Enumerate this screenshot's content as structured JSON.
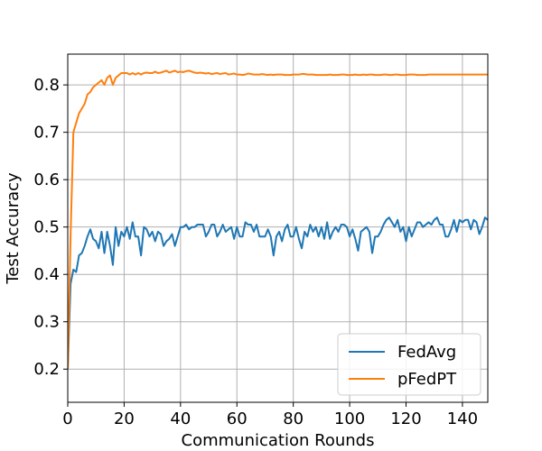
{
  "chart_data": {
    "type": "line",
    "title": "",
    "xlabel": "Communication Rounds",
    "ylabel": "Test Accuracy",
    "xlim": [
      0,
      149
    ],
    "ylim": [
      0.13,
      0.865
    ],
    "xticks": [
      0,
      20,
      40,
      60,
      80,
      100,
      120,
      140
    ],
    "yticks": [
      0.2,
      0.3,
      0.4,
      0.5,
      0.6,
      0.7,
      0.8
    ],
    "xtick_labels": [
      "0",
      "20",
      "40",
      "60",
      "80",
      "100",
      "120",
      "140"
    ],
    "ytick_labels": [
      "0.2",
      "0.3",
      "0.4",
      "0.5",
      "0.6",
      "0.7",
      "0.8"
    ],
    "grid": true,
    "legend_position": "bottom-right",
    "series": [
      {
        "name": "FedAvg",
        "color": "#1f77b4",
        "x": [
          0,
          1,
          2,
          3,
          4,
          5,
          6,
          7,
          8,
          9,
          10,
          11,
          12,
          13,
          14,
          15,
          16,
          17,
          18,
          19,
          20,
          21,
          22,
          23,
          24,
          25,
          26,
          27,
          28,
          29,
          30,
          31,
          32,
          33,
          34,
          35,
          36,
          37,
          38,
          39,
          40,
          41,
          42,
          43,
          44,
          45,
          46,
          47,
          48,
          49,
          50,
          51,
          52,
          53,
          54,
          55,
          56,
          57,
          58,
          59,
          60,
          61,
          62,
          63,
          64,
          65,
          66,
          67,
          68,
          69,
          70,
          71,
          72,
          73,
          74,
          75,
          76,
          77,
          78,
          79,
          80,
          81,
          82,
          83,
          84,
          85,
          86,
          87,
          88,
          89,
          90,
          91,
          92,
          93,
          94,
          95,
          96,
          97,
          98,
          99,
          100,
          101,
          102,
          103,
          104,
          105,
          106,
          107,
          108,
          109,
          110,
          111,
          112,
          113,
          114,
          115,
          116,
          117,
          118,
          119,
          120,
          121,
          122,
          123,
          124,
          125,
          126,
          127,
          128,
          129,
          130,
          131,
          132,
          133,
          134,
          135,
          136,
          137,
          138,
          139,
          140,
          141,
          142,
          143,
          144,
          145,
          146,
          147,
          148,
          149
        ],
        "values": [
          0.2,
          0.38,
          0.41,
          0.405,
          0.44,
          0.445,
          0.46,
          0.48,
          0.495,
          0.475,
          0.47,
          0.455,
          0.49,
          0.445,
          0.49,
          0.46,
          0.42,
          0.5,
          0.46,
          0.49,
          0.48,
          0.5,
          0.475,
          0.51,
          0.48,
          0.48,
          0.44,
          0.5,
          0.495,
          0.48,
          0.49,
          0.47,
          0.49,
          0.485,
          0.46,
          0.47,
          0.475,
          0.485,
          0.46,
          0.48,
          0.5,
          0.5,
          0.505,
          0.495,
          0.5,
          0.5,
          0.505,
          0.505,
          0.505,
          0.48,
          0.49,
          0.505,
          0.505,
          0.48,
          0.49,
          0.505,
          0.49,
          0.495,
          0.5,
          0.475,
          0.5,
          0.48,
          0.48,
          0.51,
          0.505,
          0.505,
          0.49,
          0.505,
          0.48,
          0.48,
          0.48,
          0.495,
          0.48,
          0.44,
          0.48,
          0.49,
          0.47,
          0.495,
          0.505,
          0.48,
          0.48,
          0.5,
          0.475,
          0.455,
          0.49,
          0.48,
          0.505,
          0.49,
          0.5,
          0.48,
          0.5,
          0.475,
          0.51,
          0.475,
          0.49,
          0.5,
          0.49,
          0.505,
          0.505,
          0.5,
          0.48,
          0.495,
          0.475,
          0.45,
          0.49,
          0.495,
          0.5,
          0.49,
          0.445,
          0.48,
          0.48,
          0.49,
          0.505,
          0.515,
          0.52,
          0.51,
          0.5,
          0.515,
          0.49,
          0.5,
          0.47,
          0.5,
          0.48,
          0.495,
          0.51,
          0.51,
          0.5,
          0.505,
          0.51,
          0.505,
          0.515,
          0.52,
          0.505,
          0.505,
          0.48,
          0.48,
          0.495,
          0.515,
          0.49,
          0.515,
          0.51,
          0.515,
          0.515,
          0.495,
          0.515,
          0.51,
          0.485,
          0.5,
          0.52,
          0.515
        ],
        "values_note_placeholder": null
      },
      {
        "name": "pFedPT",
        "color": "#ff7f0e",
        "x": [
          0,
          1,
          2,
          3,
          4,
          5,
          6,
          7,
          8,
          9,
          10,
          11,
          12,
          13,
          14,
          15,
          16,
          17,
          18,
          19,
          20,
          21,
          22,
          23,
          24,
          25,
          26,
          27,
          28,
          29,
          30,
          31,
          32,
          33,
          34,
          35,
          36,
          37,
          38,
          39,
          40,
          41,
          42,
          43,
          44,
          45,
          46,
          47,
          48,
          49,
          50,
          51,
          52,
          53,
          54,
          55,
          56,
          57,
          58,
          59,
          60,
          61,
          62,
          63,
          64,
          65,
          66,
          67,
          68,
          69,
          70,
          71,
          72,
          73,
          74,
          75,
          76,
          77,
          78,
          79,
          80,
          81,
          82,
          83,
          84,
          85,
          86,
          87,
          88,
          89,
          90,
          91,
          92,
          93,
          94,
          95,
          96,
          97,
          98,
          99,
          100,
          101,
          102,
          103,
          104,
          105,
          106,
          107,
          108,
          109,
          110,
          111,
          112,
          113,
          114,
          115,
          116,
          117,
          118,
          119,
          120,
          121,
          122,
          123,
          124,
          125,
          126,
          127,
          128,
          129,
          130,
          131,
          132,
          133,
          134,
          135,
          136,
          137,
          138,
          139,
          140,
          141,
          142,
          143,
          144,
          145,
          146,
          147,
          148,
          149
        ],
        "values": [
          0.2,
          0.48,
          0.7,
          0.72,
          0.74,
          0.75,
          0.76,
          0.78,
          0.785,
          0.795,
          0.8,
          0.805,
          0.81,
          0.8,
          0.815,
          0.82,
          0.8,
          0.815,
          0.82,
          0.825,
          0.825,
          0.825,
          0.822,
          0.825,
          0.822,
          0.825,
          0.822,
          0.825,
          0.826,
          0.825,
          0.825,
          0.828,
          0.825,
          0.826,
          0.828,
          0.83,
          0.826,
          0.828,
          0.83,
          0.827,
          0.828,
          0.827,
          0.829,
          0.83,
          0.828,
          0.826,
          0.825,
          0.826,
          0.825,
          0.824,
          0.825,
          0.823,
          0.824,
          0.825,
          0.823,
          0.824,
          0.825,
          0.822,
          0.823,
          0.824,
          0.822,
          0.822,
          0.821,
          0.822,
          0.824,
          0.823,
          0.822,
          0.822,
          0.822,
          0.823,
          0.822,
          0.821,
          0.822,
          0.821,
          0.822,
          0.822,
          0.822,
          0.821,
          0.821,
          0.821,
          0.822,
          0.822,
          0.822,
          0.823,
          0.823,
          0.822,
          0.822,
          0.822,
          0.821,
          0.821,
          0.821,
          0.821,
          0.821,
          0.822,
          0.821,
          0.821,
          0.821,
          0.822,
          0.822,
          0.821,
          0.821,
          0.821,
          0.822,
          0.821,
          0.821,
          0.822,
          0.821,
          0.822,
          0.822,
          0.821,
          0.821,
          0.821,
          0.822,
          0.822,
          0.821,
          0.821,
          0.822,
          0.822,
          0.821,
          0.821,
          0.821,
          0.822,
          0.822,
          0.822,
          0.821,
          0.821,
          0.821,
          0.821,
          0.822,
          0.822,
          0.822,
          0.822,
          0.822,
          0.822,
          0.822,
          0.822,
          0.822,
          0.822,
          0.822,
          0.822,
          0.822,
          0.822,
          0.822,
          0.822,
          0.822,
          0.822,
          0.822,
          0.822,
          0.822,
          0.822
        ]
      }
    ]
  }
}
